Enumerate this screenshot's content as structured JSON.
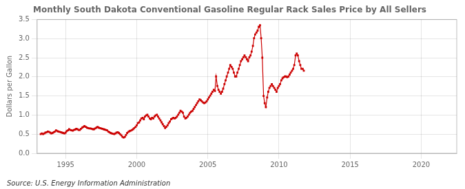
{
  "chart_data": {
    "type": "line",
    "title": "Monthly South Dakota Conventional Gasoline Regular Rack Sales Price by All Sellers",
    "ylabel": "Dollars per Gallon",
    "annotations": [
      "Source: U.S. Energy Information Administration"
    ],
    "color": "#cc0000",
    "marker": "square",
    "grid": true,
    "xlim": [
      1993.0,
      2022.5
    ],
    "ylim": [
      0.0,
      3.5
    ],
    "xticks": [
      1995,
      2000,
      2005,
      2010,
      2015,
      2020
    ],
    "yticks": [
      {
        "value": 0.0,
        "label": "0.0"
      },
      {
        "value": 0.5,
        "label": "0.5"
      },
      {
        "value": 1.0,
        "label": "1.0"
      },
      {
        "value": 1.5,
        "label": "1.5"
      },
      {
        "value": 2.0,
        "label": "2.0"
      },
      {
        "value": 2.5,
        "label": "2.5"
      },
      {
        "value": 3.0,
        "label": "3.0"
      },
      {
        "value": 3.5,
        "label": "3.5"
      }
    ],
    "x": [
      1993.25,
      1993.33,
      1993.42,
      1993.5,
      1993.58,
      1993.67,
      1993.75,
      1993.83,
      1993.92,
      1994.0,
      1994.08,
      1994.17,
      1994.25,
      1994.33,
      1994.42,
      1994.5,
      1994.58,
      1994.67,
      1994.75,
      1994.83,
      1994.92,
      1995.0,
      1995.08,
      1995.17,
      1995.25,
      1995.33,
      1995.42,
      1995.5,
      1995.58,
      1995.67,
      1995.75,
      1995.83,
      1995.92,
      1996.0,
      1996.08,
      1996.17,
      1996.25,
      1996.33,
      1996.42,
      1996.5,
      1996.58,
      1996.67,
      1996.75,
      1996.83,
      1996.92,
      1997.0,
      1997.08,
      1997.17,
      1997.25,
      1997.33,
      1997.42,
      1997.5,
      1997.58,
      1997.67,
      1997.75,
      1997.83,
      1997.92,
      1998.0,
      1998.08,
      1998.17,
      1998.25,
      1998.33,
      1998.42,
      1998.5,
      1998.58,
      1998.67,
      1998.75,
      1998.83,
      1998.92,
      1999.0,
      1999.08,
      1999.17,
      1999.25,
      1999.33,
      1999.42,
      1999.5,
      1999.58,
      1999.67,
      1999.75,
      1999.83,
      1999.92,
      2000.0,
      2000.08,
      2000.17,
      2000.25,
      2000.33,
      2000.42,
      2000.5,
      2000.58,
      2000.67,
      2000.75,
      2000.83,
      2000.92,
      2001.0,
      2001.08,
      2001.17,
      2001.25,
      2001.33,
      2001.42,
      2001.5,
      2001.58,
      2001.67,
      2001.75,
      2001.83,
      2001.92,
      2002.0,
      2002.08,
      2002.17,
      2002.25,
      2002.33,
      2002.42,
      2002.5,
      2002.58,
      2002.67,
      2002.75,
      2002.83,
      2002.92,
      2003.0,
      2003.08,
      2003.17,
      2003.25,
      2003.33,
      2003.42,
      2003.5,
      2003.58,
      2003.67,
      2003.75,
      2003.83,
      2003.92,
      2004.0,
      2004.08,
      2004.17,
      2004.25,
      2004.33,
      2004.42,
      2004.5,
      2004.58,
      2004.67,
      2004.75,
      2004.83,
      2004.92,
      2005.0,
      2005.08,
      2005.17,
      2005.25,
      2005.33,
      2005.42,
      2005.5,
      2005.58,
      2005.67,
      2005.75,
      2005.83,
      2005.92,
      2006.0,
      2006.08,
      2006.17,
      2006.25,
      2006.33,
      2006.42,
      2006.5,
      2006.58,
      2006.67,
      2006.75,
      2006.83,
      2006.92,
      2007.0,
      2007.08,
      2007.17,
      2007.25,
      2007.33,
      2007.42,
      2007.5,
      2007.58,
      2007.67,
      2007.75,
      2007.83,
      2007.92,
      2008.0,
      2008.08,
      2008.17,
      2008.25,
      2008.33,
      2008.42,
      2008.5,
      2008.58,
      2008.67,
      2008.75,
      2008.83,
      2008.92,
      2009.0,
      2009.08,
      2009.17,
      2009.25,
      2009.33,
      2009.42,
      2009.5,
      2009.58,
      2009.67,
      2009.75,
      2009.83,
      2009.92,
      2010.0,
      2010.08,
      2010.17,
      2010.25,
      2010.33,
      2010.42,
      2010.5,
      2010.58,
      2010.67,
      2010.75,
      2010.83,
      2010.92,
      2011.0,
      2011.08,
      2011.17,
      2011.25,
      2011.33,
      2011.42,
      2011.5,
      2011.58,
      2011.67,
      2011.75
    ],
    "values": [
      0.5,
      0.52,
      0.5,
      0.52,
      0.54,
      0.55,
      0.57,
      0.56,
      0.54,
      0.52,
      0.53,
      0.55,
      0.57,
      0.6,
      0.58,
      0.57,
      0.56,
      0.55,
      0.54,
      0.53,
      0.52,
      0.54,
      0.58,
      0.6,
      0.63,
      0.61,
      0.6,
      0.59,
      0.61,
      0.62,
      0.64,
      0.63,
      0.61,
      0.61,
      0.64,
      0.67,
      0.69,
      0.71,
      0.69,
      0.67,
      0.66,
      0.65,
      0.65,
      0.64,
      0.63,
      0.63,
      0.65,
      0.67,
      0.69,
      0.67,
      0.66,
      0.65,
      0.64,
      0.63,
      0.62,
      0.61,
      0.6,
      0.57,
      0.55,
      0.53,
      0.52,
      0.51,
      0.5,
      0.52,
      0.54,
      0.55,
      0.53,
      0.5,
      0.47,
      0.43,
      0.41,
      0.43,
      0.48,
      0.53,
      0.56,
      0.58,
      0.59,
      0.61,
      0.63,
      0.66,
      0.69,
      0.73,
      0.79,
      0.81,
      0.86,
      0.91,
      0.93,
      0.89,
      0.96,
      0.99,
      1.01,
      0.96,
      0.91,
      0.89,
      0.93,
      0.91,
      0.96,
      0.99,
      1.01,
      0.96,
      0.91,
      0.86,
      0.81,
      0.76,
      0.71,
      0.66,
      0.69,
      0.73,
      0.79,
      0.83,
      0.89,
      0.91,
      0.93,
      0.91,
      0.93,
      0.96,
      1.01,
      1.06,
      1.11,
      1.09,
      1.06,
      0.96,
      0.91,
      0.93,
      0.96,
      1.01,
      1.06,
      1.09,
      1.11,
      1.16,
      1.21,
      1.26,
      1.31,
      1.36,
      1.41,
      1.39,
      1.36,
      1.33,
      1.31,
      1.33,
      1.36,
      1.41,
      1.46,
      1.51,
      1.56,
      1.61,
      1.66,
      1.63,
      2.01,
      1.76,
      1.66,
      1.61,
      1.56,
      1.61,
      1.69,
      1.81,
      1.91,
      2.01,
      2.11,
      2.21,
      2.31,
      2.26,
      2.21,
      2.11,
      2.01,
      2.01,
      2.11,
      2.21,
      2.31,
      2.41,
      2.46,
      2.51,
      2.56,
      2.51,
      2.46,
      2.41,
      2.51,
      2.56,
      2.66,
      2.81,
      3.01,
      3.11,
      3.16,
      3.21,
      3.31,
      3.35,
      3.01,
      2.5,
      1.5,
      1.31,
      1.21,
      1.46,
      1.61,
      1.71,
      1.76,
      1.81,
      1.76,
      1.71,
      1.66,
      1.61,
      1.71,
      1.76,
      1.81,
      1.91,
      1.96,
      1.99,
      2.01,
      2.01,
      1.99,
      2.01,
      2.06,
      2.11,
      2.16,
      2.21,
      2.31,
      2.56,
      2.61,
      2.56,
      2.41,
      2.31,
      2.21,
      2.21,
      2.16
    ]
  }
}
